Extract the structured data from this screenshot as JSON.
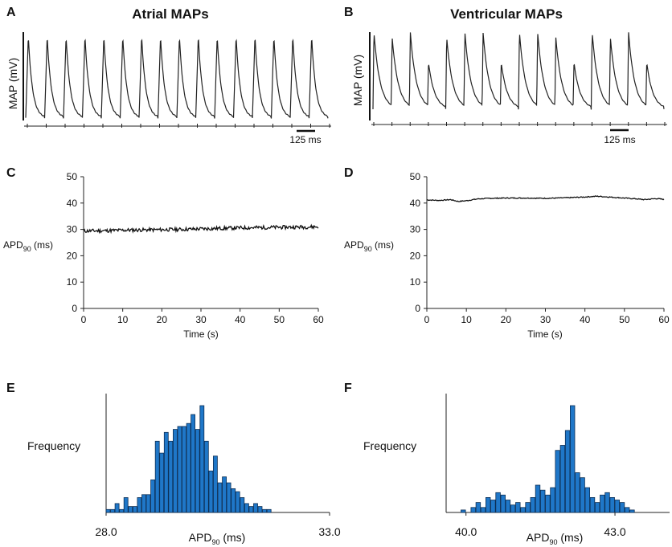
{
  "panel_labels": [
    "A",
    "B",
    "C",
    "D",
    "E",
    "F"
  ],
  "chart_data": [
    {
      "panel": "A",
      "type": "line",
      "title": "Atrial MAPs",
      "ylabel": "MAP (mV)",
      "scale_bar": "125 ms",
      "n_beats": 16,
      "beat_interval_ms": 250
    },
    {
      "panel": "B",
      "type": "line",
      "title": "Ventricular MAPs",
      "ylabel": "MAP (mV)",
      "scale_bar": "125 ms",
      "n_beats": 16,
      "beat_interval_ms": 250
    },
    {
      "panel": "C",
      "type": "line",
      "ylabel": "APD",
      "ylabel_sub": "90",
      "ylabel_unit": " (ms)",
      "xlabel": "Time (s)",
      "xlim": [
        0,
        60
      ],
      "ylim": [
        0,
        50
      ],
      "xticks": [
        "0",
        "10",
        "20",
        "30",
        "40",
        "50",
        "60"
      ],
      "yticks": [
        "0",
        "10",
        "20",
        "30",
        "40",
        "50"
      ],
      "x": [
        0,
        5,
        10,
        15,
        20,
        25,
        30,
        35,
        40,
        45,
        50,
        55,
        60
      ],
      "y": [
        29.4,
        29.5,
        29.7,
        29.8,
        29.9,
        30.0,
        30.2,
        30.4,
        30.6,
        30.7,
        30.8,
        30.9,
        31.0
      ]
    },
    {
      "panel": "D",
      "type": "line",
      "ylabel": "APD",
      "ylabel_sub": "90",
      "ylabel_unit": " (ms)",
      "xlabel": "Time (s)",
      "xlim": [
        0,
        60
      ],
      "ylim": [
        0,
        50
      ],
      "xticks": [
        "0",
        "10",
        "20",
        "30",
        "40",
        "50",
        "60"
      ],
      "yticks": [
        "0",
        "10",
        "20",
        "30",
        "40",
        "50"
      ],
      "x": [
        0,
        3,
        6,
        8,
        10,
        13,
        16,
        20,
        25,
        30,
        33,
        35,
        40,
        43,
        46,
        50,
        53,
        55,
        58,
        60
      ],
      "y": [
        41.2,
        41.0,
        41.3,
        40.6,
        40.9,
        41.6,
        41.8,
        41.9,
        41.9,
        41.8,
        41.9,
        42.0,
        42.3,
        42.6,
        42.3,
        41.9,
        41.6,
        41.3,
        41.7,
        41.4
      ]
    },
    {
      "panel": "E",
      "type": "bar",
      "ylabel": "Frequency",
      "xlabel": "APD",
      "xlabel_sub": "90",
      "xlabel_unit": " (ms)",
      "xlim": [
        28.0,
        33.0
      ],
      "tick_labels": [
        "28.0",
        "33.0"
      ],
      "bin_start": 28.0,
      "bin_width": 0.1,
      "values": [
        1,
        1,
        3,
        1,
        5,
        2,
        2,
        5,
        6,
        6,
        11,
        24,
        20,
        27,
        24,
        28,
        29,
        29,
        30,
        33,
        28,
        36,
        24,
        14,
        19,
        10,
        12,
        10,
        8,
        7,
        5,
        3,
        2,
        3,
        2,
        1,
        1
      ]
    },
    {
      "panel": "F",
      "type": "bar",
      "ylabel": "Frequency",
      "xlabel": "APD",
      "xlabel_sub": "90",
      "xlabel_unit": " (ms)",
      "xlim": [
        39.6,
        44.1
      ],
      "tick_labels": [
        "40.0",
        "43.0"
      ],
      "bin_start": 39.9,
      "bin_width": 0.1,
      "values": [
        1,
        0,
        2,
        4,
        2,
        6,
        5,
        8,
        7,
        5,
        3,
        4,
        2,
        4,
        6,
        11,
        9,
        7,
        10,
        25,
        27,
        33,
        43,
        16,
        14,
        10,
        6,
        4,
        7,
        8,
        6,
        5,
        4,
        2,
        1
      ]
    }
  ]
}
